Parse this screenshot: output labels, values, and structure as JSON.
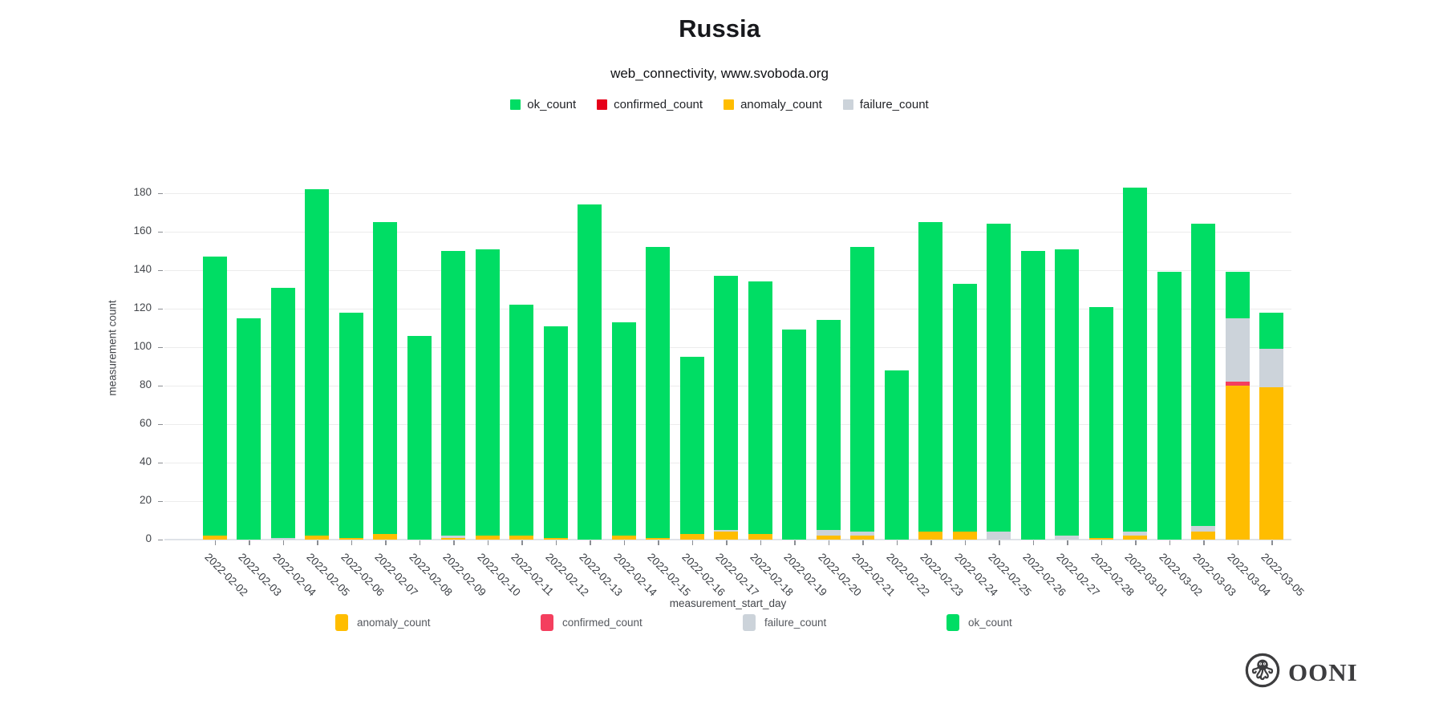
{
  "title": "Russia",
  "subtitle": "web_connectivity, www.svoboda.org",
  "top_legend": [
    {
      "label": "ok_count",
      "color": "#00dd64"
    },
    {
      "label": "confirmed_count",
      "color": "#e60019"
    },
    {
      "label": "anomaly_count",
      "color": "#ffbd00"
    },
    {
      "label": "failure_count",
      "color": "#ccd3da"
    }
  ],
  "bottom_legend": [
    {
      "label": "anomaly_count",
      "color": "#ffbd00"
    },
    {
      "label": "confirmed_count",
      "color": "#f43f5e"
    },
    {
      "label": "failure_count",
      "color": "#ccd3da"
    },
    {
      "label": "ok_count",
      "color": "#00dd64"
    }
  ],
  "logo": {
    "wordmark": "OONI"
  },
  "chart_data": {
    "type": "bar",
    "stacked": true,
    "title": "Russia",
    "xlabel": "measurement_start_day",
    "ylabel": "measurement count",
    "ylim": [
      0,
      199
    ],
    "yticks": [
      0,
      20,
      40,
      60,
      80,
      100,
      120,
      140,
      160,
      180
    ],
    "grid": true,
    "legend_position": "top-center and below-axis",
    "categories": [
      "2022-02-02",
      "2022-02-03",
      "2022-02-04",
      "2022-02-05",
      "2022-02-06",
      "2022-02-07",
      "2022-02-08",
      "2022-02-09",
      "2022-02-10",
      "2022-02-11",
      "2022-02-12",
      "2022-02-13",
      "2022-02-14",
      "2022-02-15",
      "2022-02-16",
      "2022-02-17",
      "2022-02-18",
      "2022-02-19",
      "2022-02-20",
      "2022-02-21",
      "2022-02-22",
      "2022-02-23",
      "2022-02-24",
      "2022-02-25",
      "2022-02-26",
      "2022-02-27",
      "2022-02-28",
      "2022-03-01",
      "2022-03-02",
      "2022-03-03",
      "2022-03-04",
      "2022-03-05"
    ],
    "series": [
      {
        "name": "anomaly_count",
        "color": "#ffbd00",
        "values": [
          2,
          0,
          0,
          2,
          1,
          3,
          0,
          1,
          2,
          2,
          1,
          0,
          2,
          1,
          3,
          4,
          3,
          0,
          2,
          2,
          0,
          4,
          4,
          0,
          0,
          0,
          1,
          2,
          0,
          4,
          80,
          79
        ]
      },
      {
        "name": "confirmed_count",
        "color": "#f43f5e",
        "values": [
          0,
          0,
          0,
          0,
          0,
          0,
          0,
          0,
          0,
          0,
          0,
          0,
          0,
          0,
          0,
          0,
          0,
          0,
          0,
          0,
          0,
          0,
          0,
          0,
          0,
          0,
          0,
          0,
          0,
          0,
          2,
          0
        ]
      },
      {
        "name": "failure_count",
        "color": "#ccd3da",
        "values": [
          0,
          0,
          1,
          0,
          0,
          0,
          0,
          1,
          0,
          0,
          0,
          0,
          0,
          0,
          0,
          1,
          0,
          0,
          3,
          2,
          0,
          0,
          0,
          4,
          0,
          2,
          0,
          2,
          0,
          3,
          33,
          20
        ]
      },
      {
        "name": "ok_count",
        "color": "#00dd64",
        "values": [
          145,
          115,
          130,
          180,
          117,
          162,
          106,
          148,
          149,
          120,
          110,
          174,
          111,
          151,
          92,
          132,
          131,
          109,
          109,
          148,
          88,
          161,
          129,
          160,
          150,
          149,
          120,
          179,
          139,
          157,
          24,
          19
        ]
      }
    ],
    "totals": [
      147,
      115,
      131,
      182,
      118,
      165,
      106,
      150,
      151,
      122,
      111,
      174,
      113,
      152,
      95,
      137,
      134,
      109,
      114,
      152,
      88,
      165,
      133,
      164,
      150,
      151,
      121,
      183,
      139,
      164,
      139,
      118
    ]
  }
}
